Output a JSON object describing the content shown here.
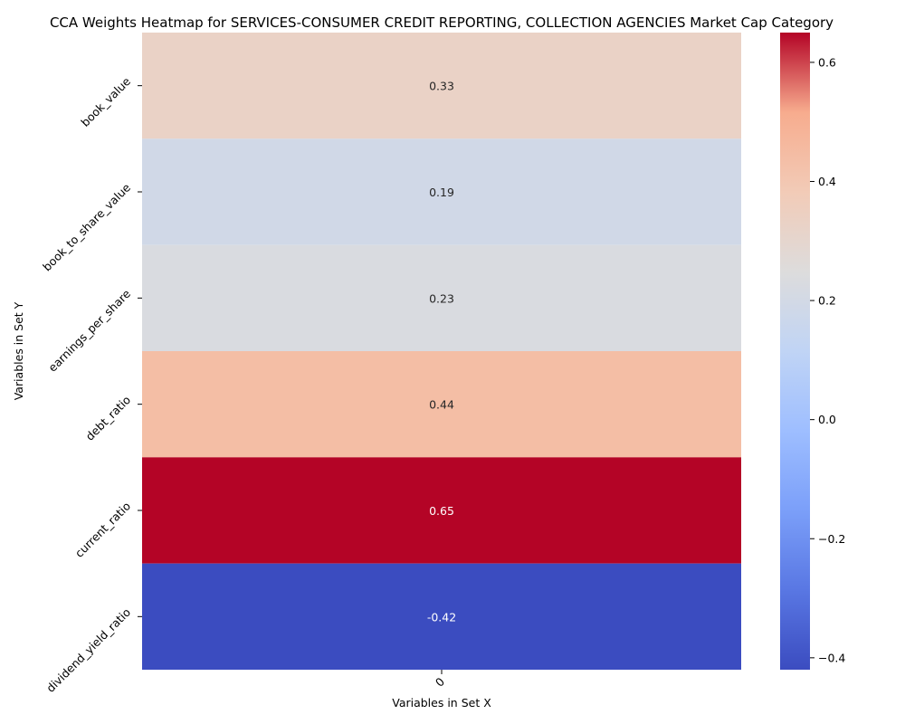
{
  "chart_data": {
    "type": "heatmap",
    "title": "CCA Weights Heatmap for SERVICES-CONSUMER CREDIT REPORTING, COLLECTION AGENCIES Market Cap Category",
    "xlabel": "Variables in Set X",
    "ylabel": "Variables in Set Y",
    "x_categories": [
      "0"
    ],
    "y_categories": [
      "book_value",
      "book_to_share_value",
      "earnings_per_share",
      "debt_ratio",
      "current_ratio",
      "dividend_yield_ratio"
    ],
    "values": [
      [
        0.33
      ],
      [
        0.19
      ],
      [
        0.23
      ],
      [
        0.44
      ],
      [
        0.65
      ],
      [
        -0.42
      ]
    ],
    "value_labels": [
      "0.33",
      "0.19",
      "0.23",
      "0.44",
      "0.65",
      "-0.42"
    ],
    "colormap": "coolwarm",
    "vmin": -0.42,
    "vmax": 0.65,
    "colorbar": {
      "ticks": [
        -0.4,
        -0.2,
        0.0,
        0.2,
        0.4,
        0.6
      ],
      "tick_labels": [
        "−0.4",
        "−0.2",
        "0.0",
        "0.2",
        "0.4",
        "0.6"
      ]
    }
  }
}
